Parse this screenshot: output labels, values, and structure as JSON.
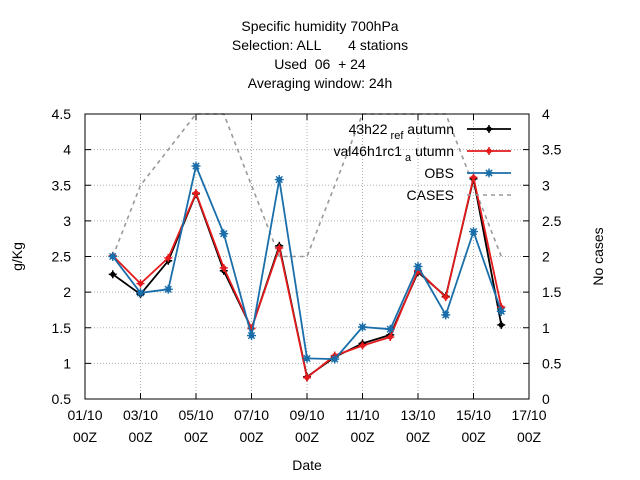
{
  "chart_data": {
    "type": "line",
    "title_lines": [
      "Specific humidity 700hPa",
      "Selection: ALL       4 stations",
      "Used  06  + 24",
      "Averaging window: 24h"
    ],
    "xlabel": "Date",
    "ylabel": "g/Kg",
    "y2label": "No cases",
    "xlim": [
      "2023-10-01T00:00",
      "2023-10-17T00:00"
    ],
    "ylim": [
      0.5,
      4.5
    ],
    "y2lim": [
      0,
      4
    ],
    "x_ticks": [
      {
        "value": "2023-10-01T00:00",
        "label": [
          "01/10",
          "00Z"
        ]
      },
      {
        "value": "2023-10-03T00:00",
        "label": [
          "03/10",
          "00Z"
        ]
      },
      {
        "value": "2023-10-05T00:00",
        "label": [
          "05/10",
          "00Z"
        ]
      },
      {
        "value": "2023-10-07T00:00",
        "label": [
          "07/10",
          "00Z"
        ]
      },
      {
        "value": "2023-10-09T00:00",
        "label": [
          "09/10",
          "00Z"
        ]
      },
      {
        "value": "2023-10-11T00:00",
        "label": [
          "11/10",
          "00Z"
        ]
      },
      {
        "value": "2023-10-13T00:00",
        "label": [
          "13/10",
          "00Z"
        ]
      },
      {
        "value": "2023-10-15T00:00",
        "label": [
          "15/10",
          "00Z"
        ]
      },
      {
        "value": "2023-10-17T00:00",
        "label": [
          "17/10",
          "00Z"
        ]
      }
    ],
    "y_ticks": [
      "0.5",
      "1",
      "1.5",
      "2",
      "2.5",
      "3",
      "3.5",
      "4",
      "4.5"
    ],
    "y2_ticks": [
      "0",
      "0.5",
      "1",
      "1.5",
      "2",
      "2.5",
      "3",
      "3.5",
      "4"
    ],
    "grid": true,
    "legend_position": "top-right",
    "x": [
      "2023-10-02T00:00",
      "2023-10-03T00:00",
      "2023-10-04T00:00",
      "2023-10-05T00:00",
      "2023-10-06T00:00",
      "2023-10-07T00:00",
      "2023-10-08T00:00",
      "2023-10-09T00:00",
      "2023-10-10T00:00",
      "2023-10-11T00:00",
      "2023-10-12T00:00",
      "2023-10-13T00:00",
      "2023-10-14T00:00",
      "2023-10-15T00:00",
      "2023-10-16T00:00"
    ],
    "series": [
      {
        "name": "43h22",
        "name_sub": "ref",
        "name_tail": "autumn",
        "axis": "y",
        "color": "#000000",
        "marker": "plus-filled",
        "values": [
          2.25,
          1.97,
          2.44,
          3.38,
          2.3,
          1.49,
          2.65,
          0.81,
          1.09,
          1.28,
          1.4,
          2.28,
          1.94,
          3.59,
          1.54
        ]
      },
      {
        "name": "val46h1rc1",
        "name_sub": "a",
        "name_tail": "utumn",
        "axis": "y",
        "color": "#e41a1c",
        "marker": "plus-filled",
        "values": [
          2.51,
          2.12,
          2.48,
          3.39,
          2.34,
          1.49,
          2.62,
          0.8,
          1.11,
          1.25,
          1.37,
          2.3,
          1.93,
          3.61,
          1.79
        ]
      },
      {
        "name": "OBS",
        "axis": "y",
        "color": "#1a6eaa",
        "marker": "asterisk",
        "values": [
          2.5,
          1.99,
          2.04,
          3.77,
          2.82,
          1.39,
          3.58,
          1.07,
          1.06,
          1.51,
          1.48,
          2.36,
          1.68,
          2.85,
          1.73
        ]
      },
      {
        "name": "CASES",
        "axis": "y2",
        "color": "#999999",
        "dash": true,
        "values": [
          2,
          3,
          3.5,
          4,
          4,
          3,
          2,
          2,
          3,
          4,
          4,
          4,
          4,
          3,
          2
        ]
      }
    ]
  }
}
